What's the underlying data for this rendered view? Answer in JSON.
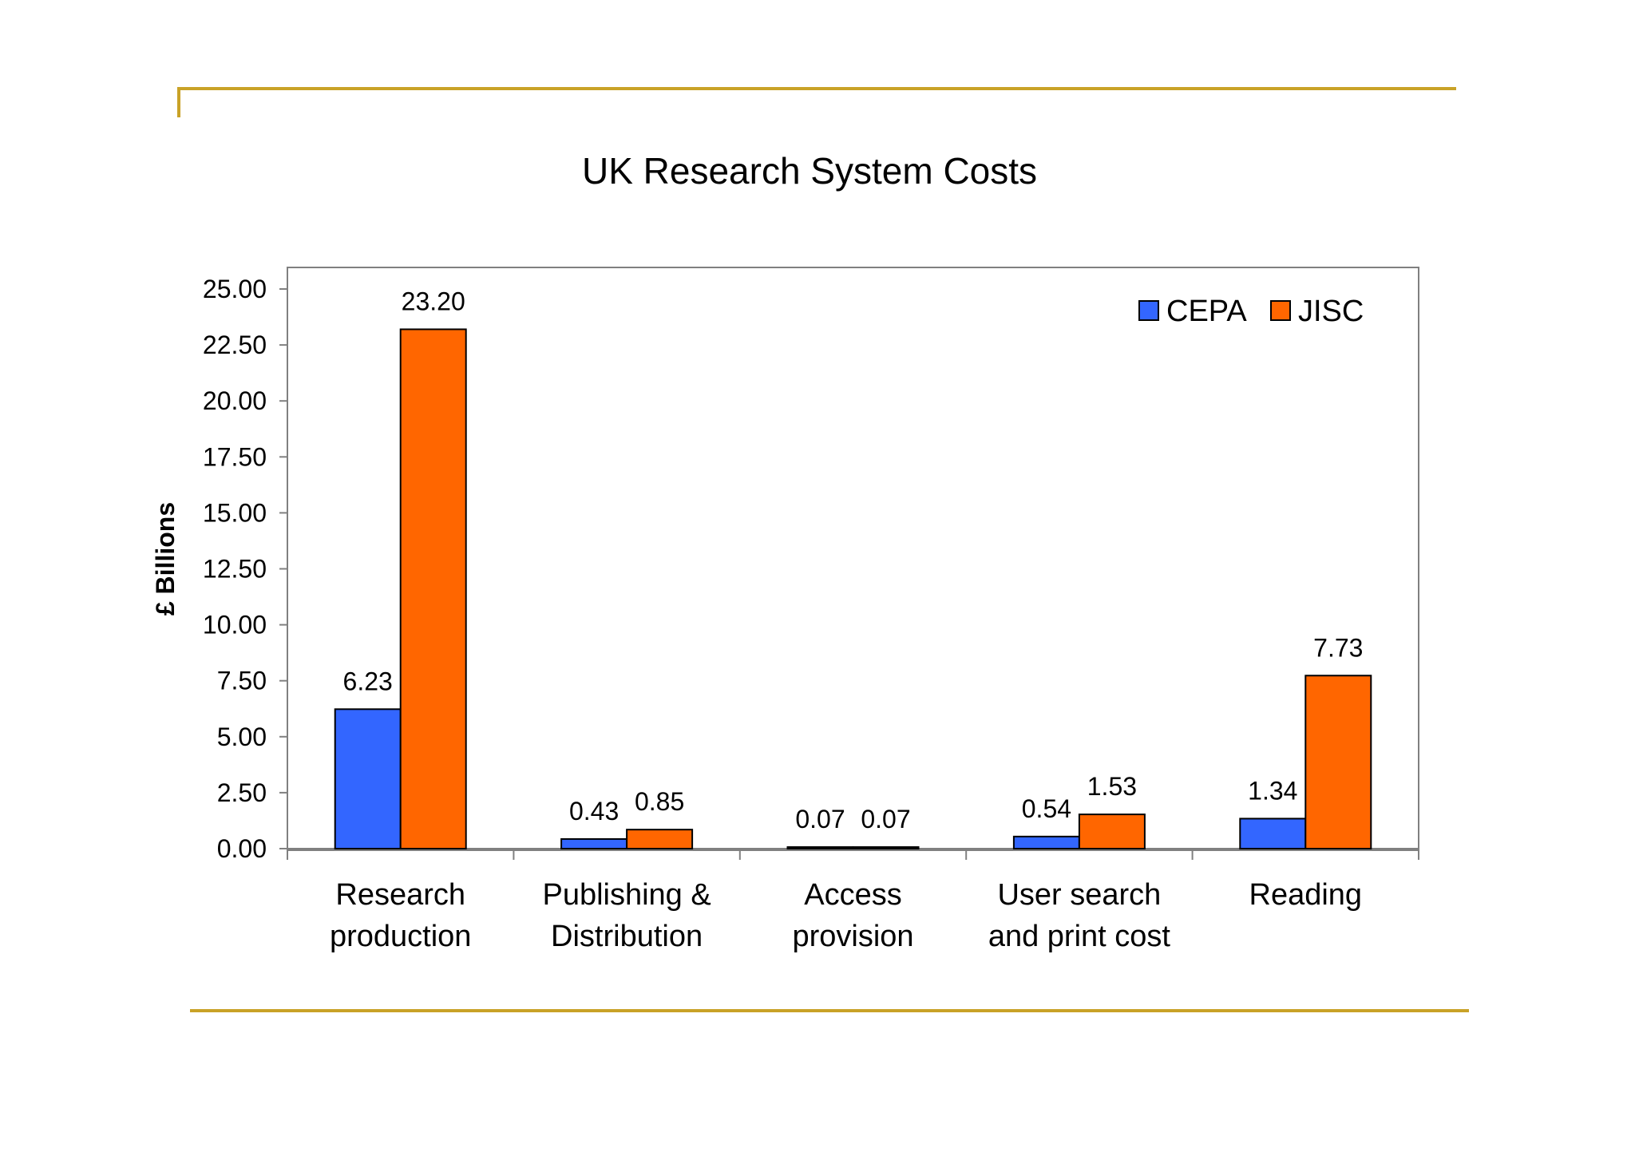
{
  "chart_data": {
    "type": "bar",
    "title": "UK Research System Costs",
    "ylabel": "£ Billions",
    "xlabel": "",
    "ylim": [
      0,
      25
    ],
    "yticks": [
      "0.00",
      "2.50",
      "5.00",
      "7.50",
      "10.00",
      "12.50",
      "15.00",
      "17.50",
      "20.00",
      "22.50",
      "25.00"
    ],
    "categories": [
      [
        "Research",
        "production"
      ],
      [
        "Publishing &",
        "Distribution"
      ],
      [
        "Access",
        "provision"
      ],
      [
        "User search",
        "and print cost"
      ],
      [
        "Reading"
      ]
    ],
    "series": [
      {
        "name": "CEPA",
        "color": "#3366ff",
        "values": [
          6.23,
          0.43,
          0.07,
          0.54,
          1.34
        ],
        "labels": [
          "6.23",
          "0.43",
          "0.07",
          "0.54",
          "1.34"
        ]
      },
      {
        "name": "JISC",
        "color": "#ff6600",
        "values": [
          23.2,
          0.85,
          0.07,
          1.53,
          7.73
        ],
        "labels": [
          "23.20",
          "0.85",
          "0.07",
          "1.53",
          "7.73"
        ]
      }
    ],
    "legend_position": "top-right",
    "grid": false
  }
}
